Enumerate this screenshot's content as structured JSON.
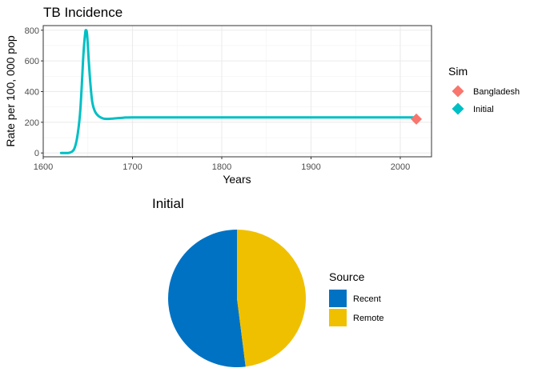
{
  "chart_data": [
    {
      "type": "line",
      "title": "TB Incidence",
      "xlabel": "Years",
      "ylabel": "Rate per 100, 000 pop",
      "xlim": [
        1600,
        2035
      ],
      "ylim": [
        -25,
        830
      ],
      "x_ticks": [
        1600,
        1700,
        1800,
        1900,
        2000
      ],
      "y_ticks": [
        0,
        200,
        400,
        600,
        800
      ],
      "grid": true,
      "legend": {
        "title": "Sim",
        "position": "right",
        "entries": [
          {
            "label": "Bangladesh",
            "color": "#F8766D",
            "marker": "diamond"
          },
          {
            "label": "Initial",
            "color": "#00BFC4",
            "marker": "diamond"
          }
        ]
      },
      "series": [
        {
          "name": "Initial",
          "color": "#00BFC4",
          "x": [
            1620,
            1628,
            1632,
            1635,
            1638,
            1641,
            1643,
            1645,
            1647,
            1648,
            1649,
            1650,
            1651,
            1653,
            1655,
            1658,
            1662,
            1667,
            1672,
            1680,
            1690,
            1700,
            1750,
            1800,
            1850,
            1900,
            1950,
            2000,
            2018
          ],
          "y": [
            0,
            0,
            8,
            30,
            100,
            240,
            420,
            640,
            780,
            800,
            780,
            700,
            600,
            440,
            330,
            270,
            240,
            225,
            222,
            225,
            230,
            232,
            232,
            232,
            232,
            232,
            232,
            232,
            232
          ]
        },
        {
          "name": "Bangladesh",
          "color": "#F8766D",
          "type": "point",
          "x": [
            2018
          ],
          "y": [
            221
          ]
        }
      ]
    },
    {
      "type": "pie",
      "title": "Initial",
      "legend": {
        "title": "Source",
        "position": "right"
      },
      "slices": [
        {
          "label": "Recent",
          "value": 0.52,
          "color": "#0072C3"
        },
        {
          "label": "Remote",
          "value": 0.48,
          "color": "#EFC000"
        }
      ]
    }
  ]
}
